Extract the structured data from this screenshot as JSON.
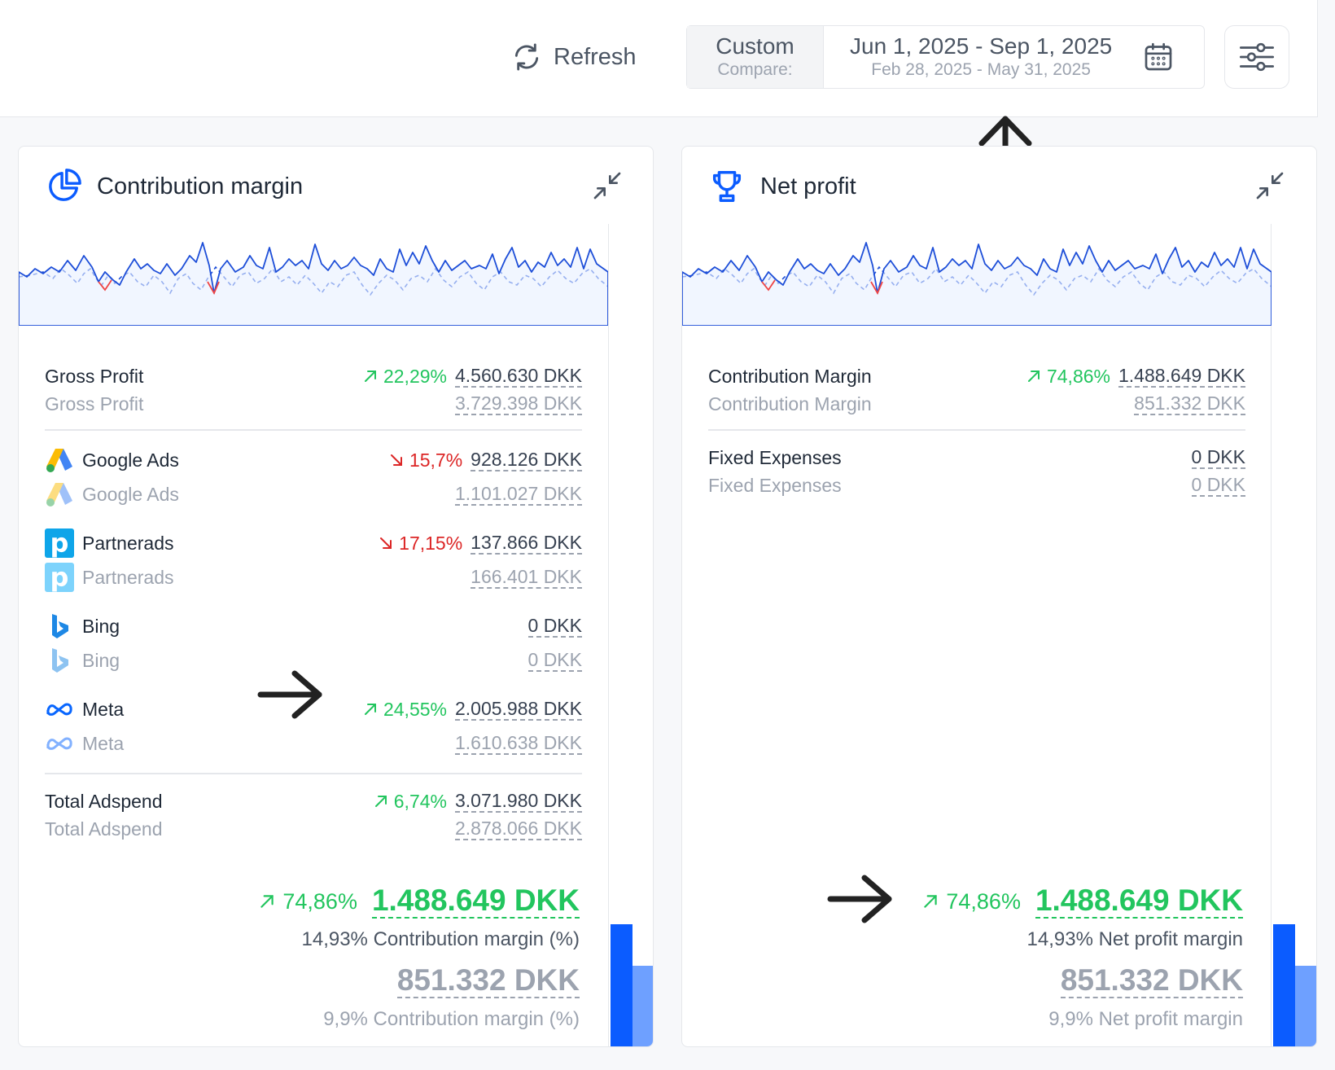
{
  "toolbar": {
    "refresh_label": "Refresh",
    "range_mode": "Custom",
    "compare_label": "Compare:",
    "date_range": "Jun 1, 2025 - Sep 1, 2025",
    "compare_range": "Feb 28, 2025 - May 31, 2025"
  },
  "colors": {
    "accent_blue": "#0b5cff",
    "positive": "#22c55e",
    "negative": "#dc2626",
    "muted": "#9ca3af"
  },
  "left_card": {
    "title": "Contribution margin",
    "icon": "pie-chart-icon",
    "rows": {
      "gross_profit": {
        "label": "Gross Profit",
        "change": "22,29%",
        "direction": "up",
        "value": "4.560.630 DKK",
        "prev_label": "Gross Profit",
        "prev_value": "3.729.398 DKK"
      },
      "google_ads": {
        "label": "Google Ads",
        "change": "15,7%",
        "direction": "down",
        "value": "928.126 DKK",
        "prev_label": "Google Ads",
        "prev_value": "1.101.027 DKK"
      },
      "partnerads": {
        "label": "Partnerads",
        "change": "17,15%",
        "direction": "down",
        "value": "137.866 DKK",
        "prev_label": "Partnerads",
        "prev_value": "166.401 DKK"
      },
      "bing": {
        "label": "Bing",
        "value": "0 DKK",
        "prev_label": "Bing",
        "prev_value": "0 DKK"
      },
      "meta": {
        "label": "Meta",
        "change": "24,55%",
        "direction": "up",
        "value": "2.005.988 DKK",
        "prev_label": "Meta",
        "prev_value": "1.610.638 DKK"
      },
      "total_adspend": {
        "label": "Total Adspend",
        "change": "6,74%",
        "direction": "up",
        "value": "3.071.980 DKK",
        "prev_label": "Total Adspend",
        "prev_value": "2.878.066 DKK"
      }
    },
    "total": {
      "change": "74,86%",
      "value": "1.488.649 DKK",
      "sub": "14,93% Contribution margin (%)",
      "prev_value": "851.332 DKK",
      "prev_sub": "9,9% Contribution margin (%)"
    }
  },
  "right_card": {
    "title": "Net profit",
    "icon": "trophy-icon",
    "rows": {
      "contribution_margin": {
        "label": "Contribution Margin",
        "change": "74,86%",
        "direction": "up",
        "value": "1.488.649 DKK",
        "prev_label": "Contribution Margin",
        "prev_value": "851.332 DKK"
      },
      "fixed_expenses": {
        "label": "Fixed Expenses",
        "value": "0 DKK",
        "prev_label": "Fixed Expenses",
        "prev_value": "0 DKK"
      }
    },
    "total": {
      "change": "74,86%",
      "value": "1.488.649 DKK",
      "sub": "14,93% Net profit margin",
      "prev_value": "851.332 DKK",
      "prev_sub": "9,9% Net profit margin"
    }
  }
}
